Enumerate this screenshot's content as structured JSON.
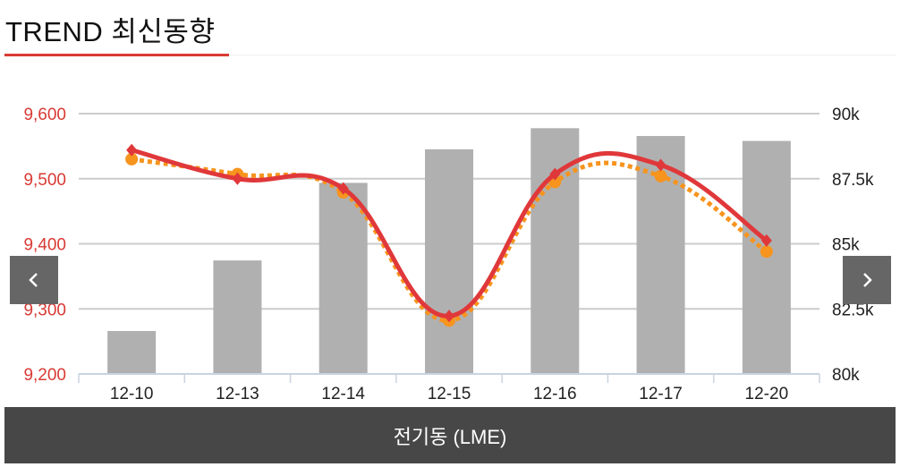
{
  "header": {
    "title": "TREND 최신동향"
  },
  "footer": {
    "label": "전기동 (LME)"
  },
  "nav": {
    "prev_icon": "chevron-left-icon",
    "next_icon": "chevron-right-icon"
  },
  "colors": {
    "accent": "#d83a34",
    "bars": "#b0b0b0",
    "line_red": "#e0383a",
    "line_orange": "#f7941d",
    "footer_bg": "#474747",
    "nav_bg": "#666666"
  },
  "chart_data": {
    "type": "bar+line",
    "categories": [
      "12-10",
      "12-13",
      "12-14",
      "12-15",
      "12-16",
      "12-17",
      "12-20"
    ],
    "left_axis": {
      "ylim": [
        9200,
        9600
      ],
      "ticks": [
        "9,200",
        "9,300",
        "9,400",
        "9,500",
        "9,600"
      ],
      "color": "#d83a34"
    },
    "right_axis": {
      "ylim": [
        80,
        90
      ],
      "ticks": [
        "80k",
        "82.5k",
        "85k",
        "87.5k",
        "90k"
      ]
    },
    "grid": true,
    "series": [
      {
        "type": "bar",
        "axis": "right",
        "values": [
          81.65,
          84.36,
          87.34,
          88.63,
          89.44,
          89.14,
          88.95
        ]
      },
      {
        "type": "line",
        "style": "solid",
        "marker": "diamond",
        "axis": "left",
        "values": [
          9544,
          9500,
          9485,
          9289,
          9507,
          9521,
          9405
        ]
      },
      {
        "type": "line",
        "style": "dotted",
        "marker": "circle",
        "axis": "left",
        "values": [
          9530,
          9507,
          9479,
          9282,
          9495,
          9504,
          9388
        ]
      }
    ]
  }
}
